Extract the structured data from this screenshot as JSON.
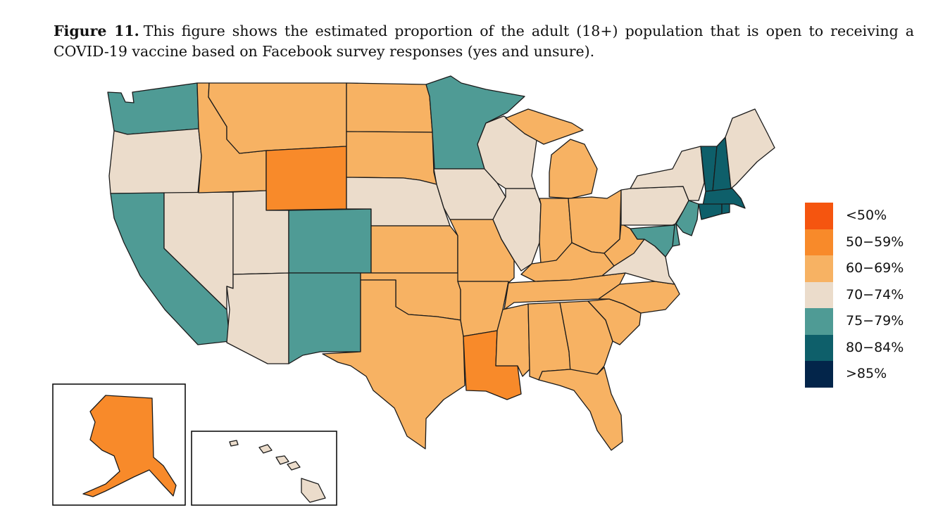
{
  "caption": {
    "label": "Figure 11.",
    "text": "This figure shows the estimated proportion of the adult (18+) population that is open to receiving a COVID-19 vaccine based on Facebook survey responses (yes and unsure)."
  },
  "legend": [
    {
      "label": "<50%",
      "color": "#f5550f"
    },
    {
      "label": "50−59%",
      "color": "#f88a2a"
    },
    {
      "label": "60−69%",
      "color": "#f7b263"
    },
    {
      "label": "70−74%",
      "color": "#ebdccb"
    },
    {
      "label": "75−79%",
      "color": "#4f9b95"
    },
    {
      "label": "80−84%",
      "color": "#0e5f6a"
    },
    {
      "label": ">85%",
      "color": "#03254a"
    }
  ],
  "states": [
    {
      "id": "WA",
      "category": "75−79%"
    },
    {
      "id": "OR",
      "category": "70−74%"
    },
    {
      "id": "CA",
      "category": "75−79%"
    },
    {
      "id": "NV",
      "category": "70−74%"
    },
    {
      "id": "ID",
      "category": "60−69%"
    },
    {
      "id": "MT",
      "category": "60−69%"
    },
    {
      "id": "WY",
      "category": "50−59%"
    },
    {
      "id": "UT",
      "category": "70−74%"
    },
    {
      "id": "AZ",
      "category": "70−74%"
    },
    {
      "id": "CO",
      "category": "75−79%"
    },
    {
      "id": "NM",
      "category": "75−79%"
    },
    {
      "id": "ND",
      "category": "60−69%"
    },
    {
      "id": "SD",
      "category": "60−69%"
    },
    {
      "id": "NE",
      "category": "70−74%"
    },
    {
      "id": "KS",
      "category": "60−69%"
    },
    {
      "id": "OK",
      "category": "60−69%"
    },
    {
      "id": "TX",
      "category": "60−69%"
    },
    {
      "id": "MN",
      "category": "75−79%"
    },
    {
      "id": "IA",
      "category": "70−74%"
    },
    {
      "id": "MO",
      "category": "60−69%"
    },
    {
      "id": "AR",
      "category": "60−69%"
    },
    {
      "id": "LA",
      "category": "50−59%"
    },
    {
      "id": "WI",
      "category": "70−74%"
    },
    {
      "id": "IL",
      "category": "70−74%"
    },
    {
      "id": "MI",
      "category": "60−69%"
    },
    {
      "id": "IN",
      "category": "60−69%"
    },
    {
      "id": "OH",
      "category": "60−69%"
    },
    {
      "id": "KY",
      "category": "60−69%"
    },
    {
      "id": "TN",
      "category": "60−69%"
    },
    {
      "id": "MS",
      "category": "60−69%"
    },
    {
      "id": "AL",
      "category": "60−69%"
    },
    {
      "id": "GA",
      "category": "60−69%"
    },
    {
      "id": "FL",
      "category": "60−69%"
    },
    {
      "id": "SC",
      "category": "60−69%"
    },
    {
      "id": "NC",
      "category": "60−69%"
    },
    {
      "id": "VA",
      "category": "70−74%"
    },
    {
      "id": "WV",
      "category": "60−69%"
    },
    {
      "id": "PA",
      "category": "70−74%"
    },
    {
      "id": "NY",
      "category": "70−74%"
    },
    {
      "id": "NJ",
      "category": "75−79%"
    },
    {
      "id": "DE",
      "category": "75−79%"
    },
    {
      "id": "MD",
      "category": "75−79%"
    },
    {
      "id": "VT",
      "category": "80−84%"
    },
    {
      "id": "NH",
      "category": "80−84%"
    },
    {
      "id": "MA",
      "category": "80−84%"
    },
    {
      "id": "CT",
      "category": "80−84%"
    },
    {
      "id": "RI",
      "category": "80−84%"
    },
    {
      "id": "ME",
      "category": "70−74%"
    },
    {
      "id": "AK",
      "category": "50−59%"
    },
    {
      "id": "HI",
      "category": "70−74%"
    }
  ]
}
